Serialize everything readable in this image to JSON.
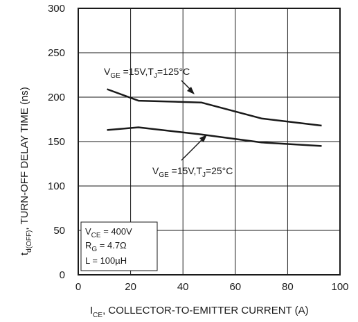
{
  "chart_data": {
    "type": "line",
    "xlim": [
      0,
      100
    ],
    "ylim": [
      0,
      300
    ],
    "x_ticks": [
      0,
      20,
      40,
      60,
      80,
      100
    ],
    "y_ticks": [
      0,
      50,
      100,
      150,
      200,
      250,
      300
    ],
    "grid": true,
    "xlabel": {
      "main": "I",
      "sub": "CE",
      "rest": ", COLLECTOR-TO-EMITTER CURRENT (A)"
    },
    "ylabel": {
      "main": "t",
      "sub": "d(OFF)",
      "rest": ", TURN-OFF DELAY TIME (ns)"
    },
    "series": [
      {
        "name": "VGE=15V,TJ=125°C",
        "x": [
          11,
          23,
          47,
          70,
          93
        ],
        "y": [
          209,
          196,
          194,
          176,
          168
        ]
      },
      {
        "name": "VGE=15V,TJ=25°C",
        "x": [
          11,
          23,
          47,
          70,
          93
        ],
        "y": [
          163,
          166,
          158,
          149,
          145
        ]
      }
    ],
    "annotations": {
      "hot": {
        "pre": "V",
        "sub1": "GE",
        "mid": " =15V,T",
        "sub2": "J",
        "post": "=125°C"
      },
      "cold": {
        "pre": "V",
        "sub1": "GE",
        "mid": " =15V,T",
        "sub2": "J",
        "post": "=25°C"
      }
    },
    "conditions": {
      "line1": {
        "pre": "V",
        "sub": "CE",
        "post": " = 400V"
      },
      "line2": {
        "pre": "R",
        "sub": "G",
        "post": " = 4.7Ω"
      },
      "line3": {
        "text": "L = 100µH"
      }
    }
  }
}
